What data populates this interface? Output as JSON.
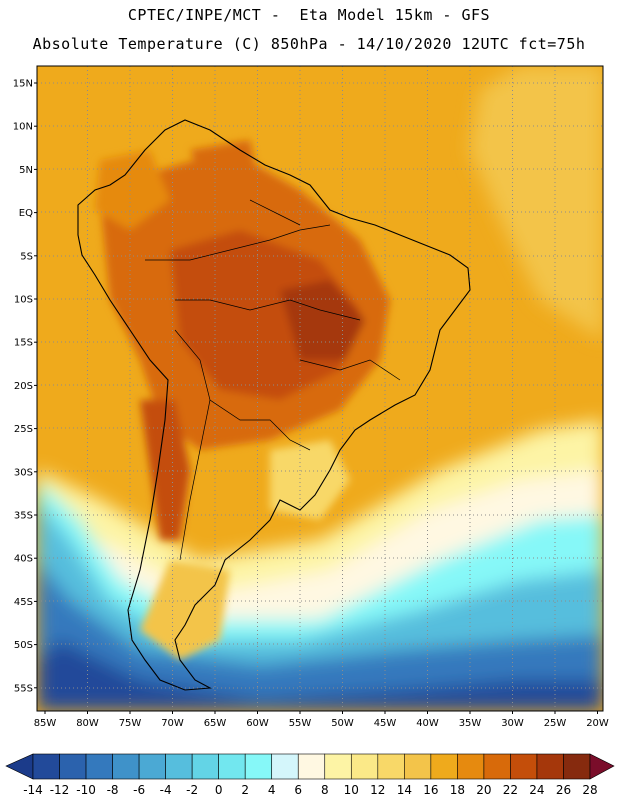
{
  "header": {
    "line1": "CPTEC/INPE/MCT -  Eta Model 15km - GFS",
    "line2": "Absolute Temperature (C) 850hPa - 14/10/2020 12UTC fct=75h"
  },
  "map": {
    "lat_labels": [
      "15N",
      "10N",
      "5N",
      "EQ",
      "5S",
      "10S",
      "15S",
      "20S",
      "25S",
      "30S",
      "35S",
      "40S",
      "45S",
      "50S",
      "55S"
    ],
    "lon_labels": [
      "85W",
      "80W",
      "75W",
      "70W",
      "65W",
      "60W",
      "55W",
      "50W",
      "45W",
      "40W",
      "35W",
      "30W",
      "25W",
      "20W"
    ],
    "colorbar": {
      "tick_labels": [
        "-14",
        "-12",
        "-10",
        "-8",
        "-6",
        "-4",
        "-2",
        "0",
        "2",
        "4",
        "6",
        "8",
        "10",
        "12",
        "14",
        "16",
        "18",
        "20",
        "22",
        "24",
        "26",
        "28"
      ],
      "colors": [
        "#1b3b8a",
        "#224a9a",
        "#2b62ad",
        "#3479bd",
        "#3f92c9",
        "#4ba9d4",
        "#56bedd",
        "#63d4e6",
        "#72e7ef",
        "#86f8f8",
        "#d4f6fb",
        "#fff8e2",
        "#fdf4a5",
        "#fbe988",
        "#f8d868",
        "#f3c44a",
        "#efaa1c",
        "#e68a0f",
        "#d86a0a",
        "#c44e0a",
        "#a5370b",
        "#862a0e",
        "#7a0d2a"
      ]
    }
  }
}
